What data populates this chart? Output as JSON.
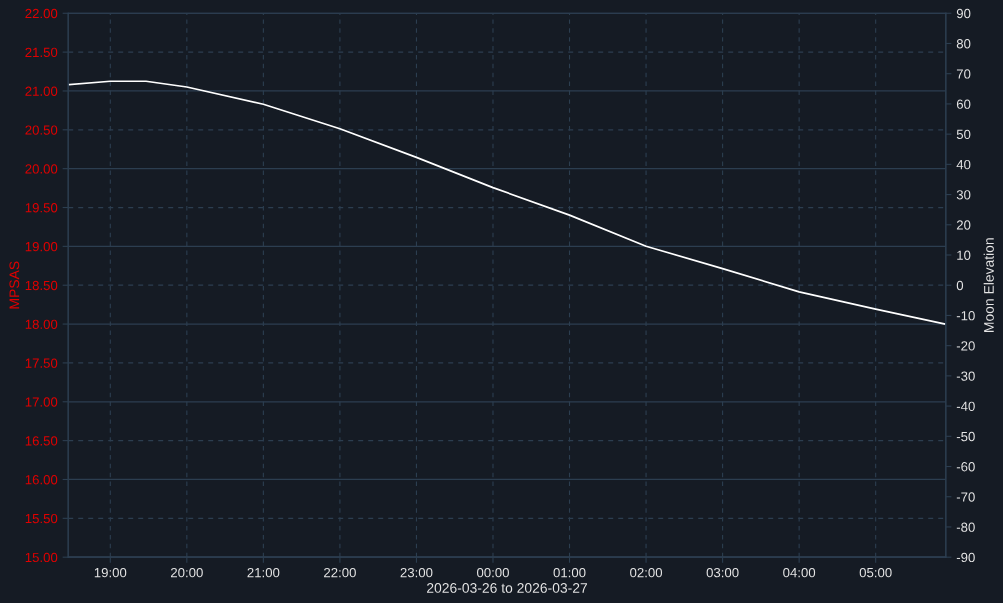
{
  "chart_data": {
    "type": "line",
    "xlabel": "2026-03-26 to 2026-03-27",
    "ylabel": "MPSAS",
    "y2label": "Moon Elevation",
    "x": [
      "2026-03-26T18:28",
      "2026-03-26T19:00",
      "2026-03-26T19:28",
      "2026-03-26T20:00",
      "2026-03-26T21:00",
      "2026-03-26T22:00",
      "2026-03-26T23:00",
      "2026-03-27T00:00",
      "2026-03-27T01:00",
      "2026-03-27T02:00",
      "2026-03-27T03:00",
      "2026-03-27T04:00",
      "2026-03-27T05:00",
      "2026-03-27T05:54"
    ],
    "series": [
      {
        "color": "#ffffff",
        "axis": "y2",
        "values": [
          66.4,
          67.5,
          67.5,
          65.6,
          59.9,
          51.8,
          42.3,
          32.3,
          23.2,
          12.9,
          5.5,
          -2.2,
          -7.9,
          -12.8
        ]
      }
    ],
    "xlim": [
      "2026-03-26T18:27",
      "2026-03-27T05:55"
    ],
    "xticks": [
      {
        "value": "2026-03-26T19:00",
        "label": "19:00"
      },
      {
        "value": "2026-03-26T20:00",
        "label": "20:00"
      },
      {
        "value": "2026-03-26T21:00",
        "label": "21:00"
      },
      {
        "value": "2026-03-26T22:00",
        "label": "22:00"
      },
      {
        "value": "2026-03-26T23:00",
        "label": "23:00"
      },
      {
        "value": "2026-03-27T00:00",
        "label": "00:00"
      },
      {
        "value": "2026-03-27T01:00",
        "label": "01:00"
      },
      {
        "value": "2026-03-27T02:00",
        "label": "02:00"
      },
      {
        "value": "2026-03-27T03:00",
        "label": "03:00"
      },
      {
        "value": "2026-03-27T04:00",
        "label": "04:00"
      },
      {
        "value": "2026-03-27T05:00",
        "label": "05:00"
      }
    ],
    "ylim": [
      15,
      22
    ],
    "yticks": [
      {
        "value": 15,
        "label": "15.00"
      },
      {
        "value": 15.5,
        "label": "15.50"
      },
      {
        "value": 16,
        "label": "16.00"
      },
      {
        "value": 16.5,
        "label": "16.50"
      },
      {
        "value": 17,
        "label": "17.00"
      },
      {
        "value": 17.5,
        "label": "17.50"
      },
      {
        "value": 18,
        "label": "18.00"
      },
      {
        "value": 18.5,
        "label": "18.50"
      },
      {
        "value": 19,
        "label": "19.00"
      },
      {
        "value": 19.5,
        "label": "19.50"
      },
      {
        "value": 20,
        "label": "20.00"
      },
      {
        "value": 20.5,
        "label": "20.50"
      },
      {
        "value": 21,
        "label": "21.00"
      },
      {
        "value": 21.5,
        "label": "21.50"
      },
      {
        "value": 22,
        "label": "22.00"
      }
    ],
    "y2lim": [
      -90,
      90
    ],
    "y2ticks": [
      -90,
      -80,
      -70,
      -60,
      -50,
      -40,
      -30,
      -20,
      -10,
      0,
      10,
      20,
      30,
      40,
      50,
      60,
      70,
      80,
      90
    ],
    "grid": true
  }
}
